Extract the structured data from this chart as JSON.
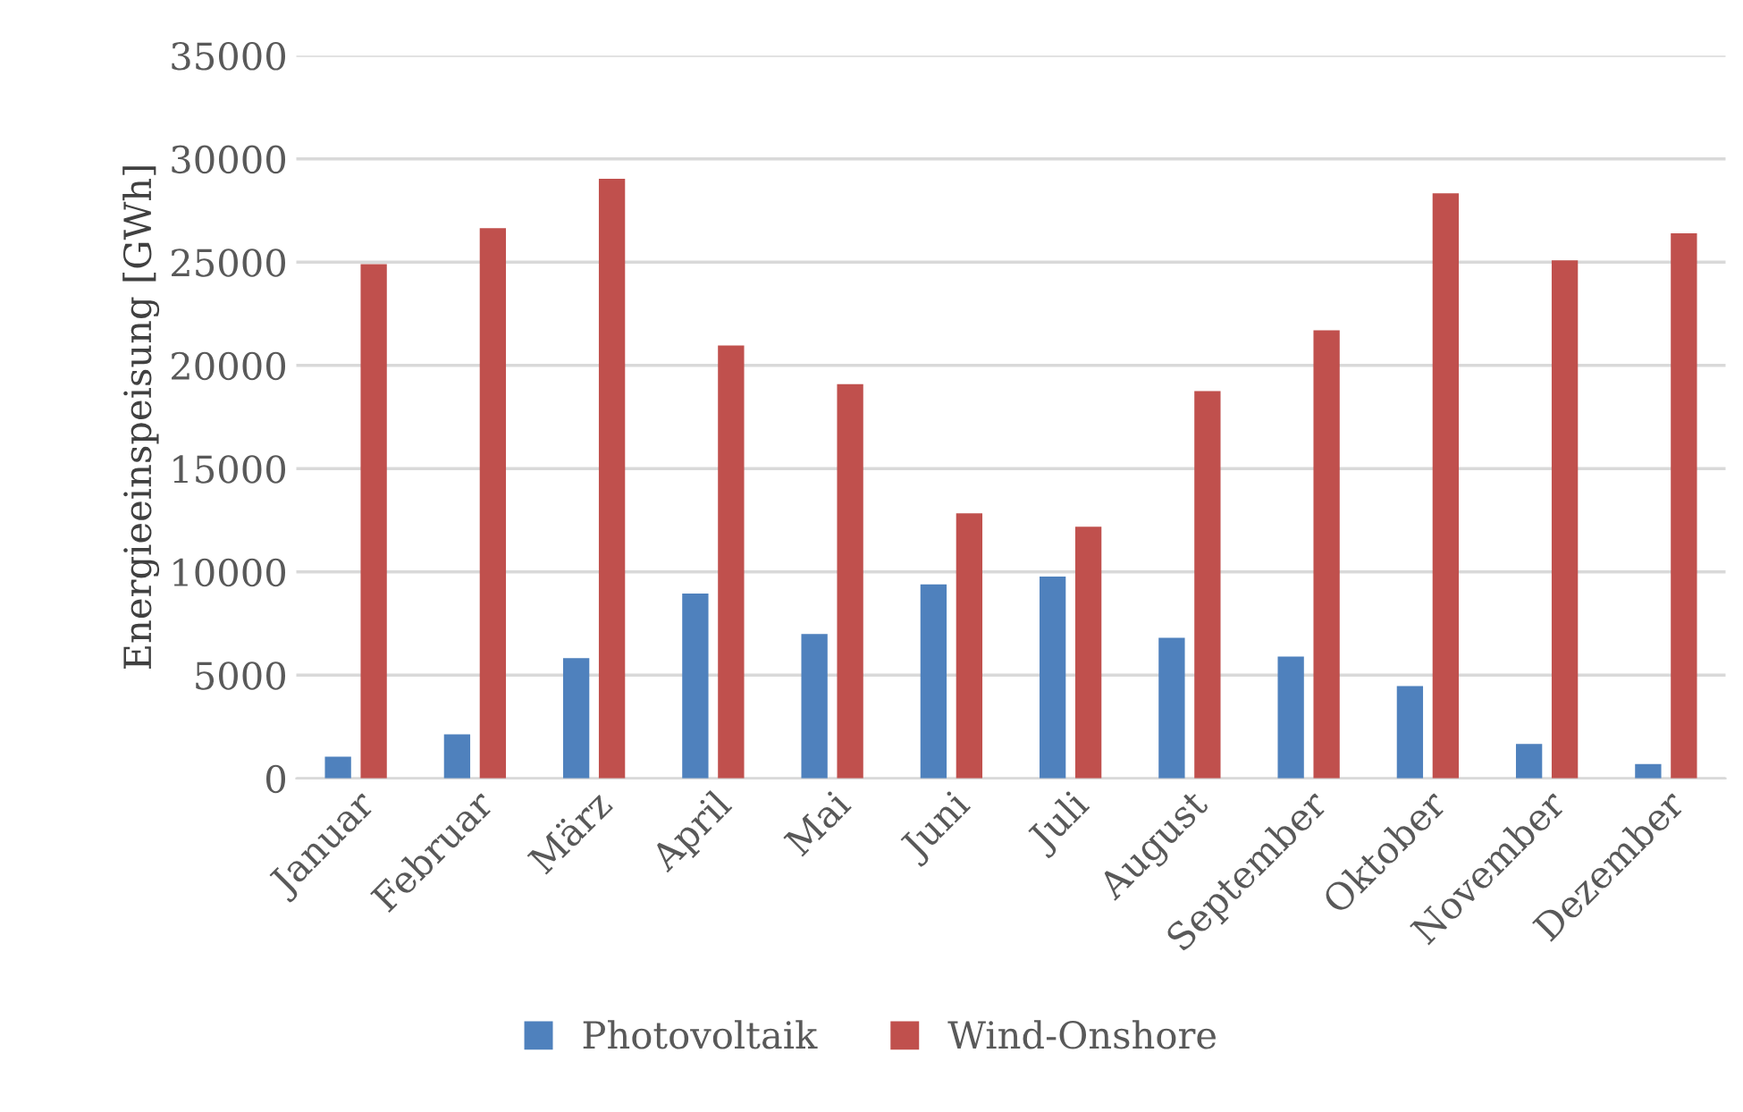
{
  "chart_data": {
    "type": "bar",
    "ylabel": "Energieeinspeisung [GWh]",
    "categories": [
      "Januar",
      "Februar",
      "März",
      "April",
      "Mai",
      "Juni",
      "Juli",
      "August",
      "September",
      "Oktober",
      "November",
      "Dezember"
    ],
    "series": [
      {
        "name": "Photovoltaik",
        "color": "#4f81bd",
        "values": [
          1050,
          2130,
          5820,
          8950,
          6990,
          9400,
          9770,
          6810,
          5900,
          4470,
          1670,
          700
        ]
      },
      {
        "name": "Wind-Onshore",
        "color": "#c0504d",
        "values": [
          24900,
          26640,
          29030,
          20960,
          19090,
          12840,
          12190,
          18760,
          21700,
          28330,
          25090,
          26400
        ]
      }
    ],
    "ylim": [
      0,
      35000
    ],
    "yticks": [
      0,
      5000,
      10000,
      15000,
      20000,
      25000,
      30000,
      35000
    ],
    "grid": "y",
    "legend": "bottom"
  }
}
